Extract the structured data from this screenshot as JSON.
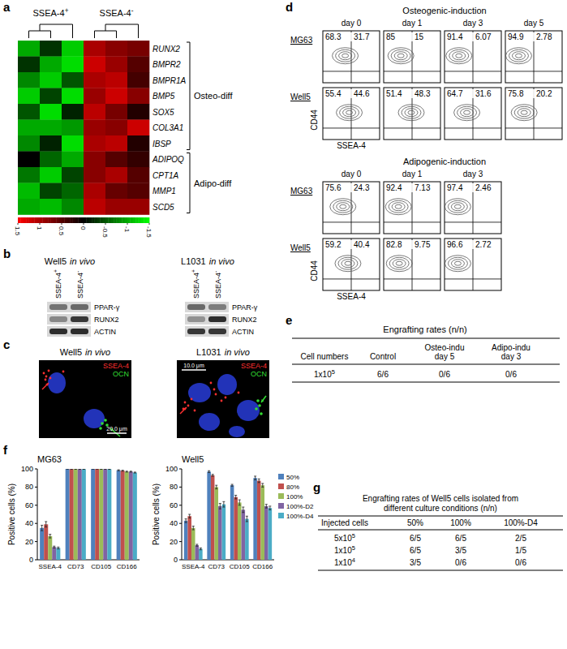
{
  "panel_labels": [
    "a",
    "b",
    "c",
    "d",
    "e",
    "f",
    "g"
  ],
  "heatmap": {
    "column_groups": [
      {
        "label": "SSEA-4+",
        "count": 3
      },
      {
        "label": "SSEA-4-",
        "count": 3
      }
    ],
    "rows": [
      "RUNX2",
      "BMPR2",
      "BMPR1A",
      "BMP5",
      "SOX5",
      "COL3A1",
      "IBSP",
      "ADIPOQ",
      "CPT1A",
      "MMP1",
      "SCD5"
    ],
    "row_groups": [
      {
        "label": "Osteo-diff",
        "count": 7
      },
      {
        "label": "Adipo-diff",
        "count": 4
      }
    ],
    "values": [
      [
        -1.0,
        -0.3,
        -1.2,
        1.0,
        0.8,
        0.7
      ],
      [
        -0.3,
        -1.0,
        -1.3,
        1.2,
        0.9,
        0.5
      ],
      [
        -0.8,
        -1.2,
        -0.5,
        1.0,
        1.1,
        0.4
      ],
      [
        -1.2,
        -0.4,
        -1.3,
        0.9,
        1.2,
        0.8
      ],
      [
        -0.5,
        -1.3,
        -0.2,
        1.1,
        0.7,
        0.2
      ],
      [
        -1.0,
        -1.0,
        -0.9,
        0.9,
        0.8,
        1.2
      ],
      [
        -0.8,
        -0.2,
        -1.3,
        1.0,
        1.1,
        0.2
      ],
      [
        0.0,
        -0.6,
        -1.0,
        0.8,
        0.5,
        0.3
      ],
      [
        -0.7,
        -1.2,
        -0.4,
        0.8,
        1.0,
        0.5
      ],
      [
        -1.1,
        -0.4,
        -0.6,
        1.0,
        0.6,
        0.5
      ],
      [
        -1.0,
        -1.1,
        -0.8,
        1.1,
        0.9,
        0.9
      ]
    ],
    "colorbar": {
      "range": [
        -1.5,
        1.5
      ],
      "ticks": [
        1.5,
        1,
        0.5,
        0,
        -0.5,
        -1,
        -1.5
      ],
      "colors": {
        "high": "#ff0000",
        "mid": "#000000",
        "low": "#00ff00"
      }
    }
  },
  "western": {
    "blots": [
      {
        "sample": "Well5",
        "condition": "in vivo",
        "columns": [
          "SSEA-4+",
          "SSEA-4-"
        ],
        "rows": [
          "PPAR-γ",
          "RUNX2",
          "ACTIN"
        ],
        "intensity": [
          [
            0.55,
            0.6
          ],
          [
            0.45,
            0.85
          ],
          [
            0.9,
            0.9
          ]
        ]
      },
      {
        "sample": "L1031",
        "condition": "in vivo",
        "columns": [
          "SSEA-4+",
          "SSEA-4-"
        ],
        "rows": [
          "PPAR-γ",
          "RUNX2",
          "ACTIN"
        ],
        "intensity": [
          [
            0.6,
            0.5
          ],
          [
            0.4,
            0.9
          ],
          [
            0.85,
            0.85
          ]
        ]
      }
    ]
  },
  "imaging": {
    "panels": [
      {
        "sample": "Well5",
        "condition": "in vivo",
        "scale_bar": "20.0 μm"
      },
      {
        "sample": "L1031",
        "condition": "in vivo",
        "scale_bar": "10.0 μm"
      }
    ],
    "channels": [
      {
        "label": "SSEA-4",
        "color": "#ff3030"
      },
      {
        "label": "OCN",
        "color": "#33dd33"
      }
    ]
  },
  "flow": {
    "xlabel": "SSEA-4",
    "ylabel": "CD44",
    "sections": [
      {
        "title": "Osteogenic-induction",
        "days": [
          "day 0",
          "day 1",
          "day 3",
          "day 5"
        ],
        "rows": [
          {
            "label": "MG63",
            "quadrants": [
              [
                68.3,
                31.7
              ],
              [
                85,
                15
              ],
              [
                91.4,
                6.07
              ],
              [
                94.9,
                2.78
              ]
            ]
          },
          {
            "label": "Well5",
            "quadrants": [
              [
                55.4,
                44.6
              ],
              [
                51.4,
                48.3
              ],
              [
                64.7,
                31.6
              ],
              [
                75.8,
                20.2
              ]
            ]
          }
        ]
      },
      {
        "title": "Adipogenic-induction",
        "days": [
          "day 0",
          "day 1",
          "day 3"
        ],
        "rows": [
          {
            "label": "MG63",
            "quadrants": [
              [
                75.6,
                24.3
              ],
              [
                92.4,
                7.13
              ],
              [
                97.4,
                2.46
              ]
            ]
          },
          {
            "label": "Well5",
            "quadrants": [
              [
                59.2,
                40.4
              ],
              [
                82.8,
                9.75
              ],
              [
                96.6,
                2.72
              ]
            ]
          }
        ]
      }
    ]
  },
  "table_e": {
    "title": "Engrafting rates (n/n)",
    "columns": [
      "Cell numbers",
      "Control",
      [
        "Osteo-indu",
        "day 5"
      ],
      [
        "Adipo-indu",
        "day 3"
      ]
    ],
    "rows": [
      [
        {
          "base": "1x10",
          "exponent": "5"
        },
        "6/6",
        "0/6",
        "0/6"
      ]
    ]
  },
  "chart_data": [
    {
      "type": "bar",
      "title": "MG63",
      "categories": [
        "SSEA-4",
        "CD73",
        "CD105",
        "CD166"
      ],
      "ylabel": "Positive cells (%)",
      "ylim": [
        0,
        100
      ],
      "yticks": [
        0,
        20,
        40,
        60,
        80,
        100
      ],
      "series": [
        {
          "color": "#4f81bd",
          "values": [
            35,
            100,
            100,
            98.5
          ],
          "errors": [
            3,
            0.2,
            0.2,
            0.5
          ]
        },
        {
          "color": "#c0504d",
          "values": [
            39,
            99.8,
            100,
            98
          ],
          "errors": [
            3,
            0.2,
            0.2,
            0.5
          ]
        },
        {
          "color": "#9bbb59",
          "values": [
            26,
            99.8,
            99.8,
            97
          ],
          "errors": [
            2,
            0.2,
            0.2,
            0.5
          ]
        },
        {
          "color": "#8064a2",
          "values": [
            14,
            99.7,
            99.8,
            97
          ],
          "errors": [
            1,
            0.2,
            0.2,
            0.5
          ]
        },
        {
          "color": "#4bacc6",
          "values": [
            13,
            99.8,
            99.7,
            96
          ],
          "errors": [
            1,
            0.2,
            0.2,
            0.5
          ]
        }
      ]
    },
    {
      "type": "bar",
      "title": "Well5",
      "categories": [
        "SSEA-4",
        "CD73",
        "CD105",
        "CD166"
      ],
      "ylabel": "Positive cells (%)",
      "ylim": [
        0,
        100
      ],
      "yticks": [
        0,
        20,
        40,
        60,
        80,
        100
      ],
      "legend": "right",
      "series": [
        {
          "name": "50%",
          "color": "#4f81bd",
          "values": [
            43,
            97,
            82,
            90
          ],
          "errors": [
            2,
            1,
            1,
            2
          ]
        },
        {
          "name": "80%",
          "color": "#c0504d",
          "values": [
            48,
            93,
            69,
            87
          ],
          "errors": [
            2,
            1,
            2,
            2
          ]
        },
        {
          "name": "100%",
          "color": "#9bbb59",
          "values": [
            35,
            80,
            63,
            82
          ],
          "errors": [
            2,
            2,
            3,
            2
          ]
        },
        {
          "name": "100%-D2",
          "color": "#8064a2",
          "values": [
            16,
            59,
            55,
            59
          ],
          "errors": [
            1,
            3,
            3,
            2
          ]
        },
        {
          "name": "100%-D4",
          "color": "#4bacc6",
          "values": [
            12,
            61,
            45,
            57
          ],
          "errors": [
            1,
            3,
            3,
            2
          ]
        }
      ]
    }
  ],
  "table_g": {
    "title": [
      "Engrafting rates of Well5 cells isolated from",
      "different culture conditions (n/n)"
    ],
    "columns": [
      "Injected cells",
      "50%",
      "100%",
      "100%-D4"
    ],
    "rows": [
      [
        {
          "base": "5x10",
          "exponent": "5"
        },
        "6/5",
        "6/5",
        "2/5"
      ],
      [
        {
          "base": "1x10",
          "exponent": "5"
        },
        "6/5",
        "3/5",
        "1/5"
      ],
      [
        {
          "base": "1x10",
          "exponent": "4"
        },
        "3/5",
        "0/6",
        "0/6"
      ]
    ]
  }
}
